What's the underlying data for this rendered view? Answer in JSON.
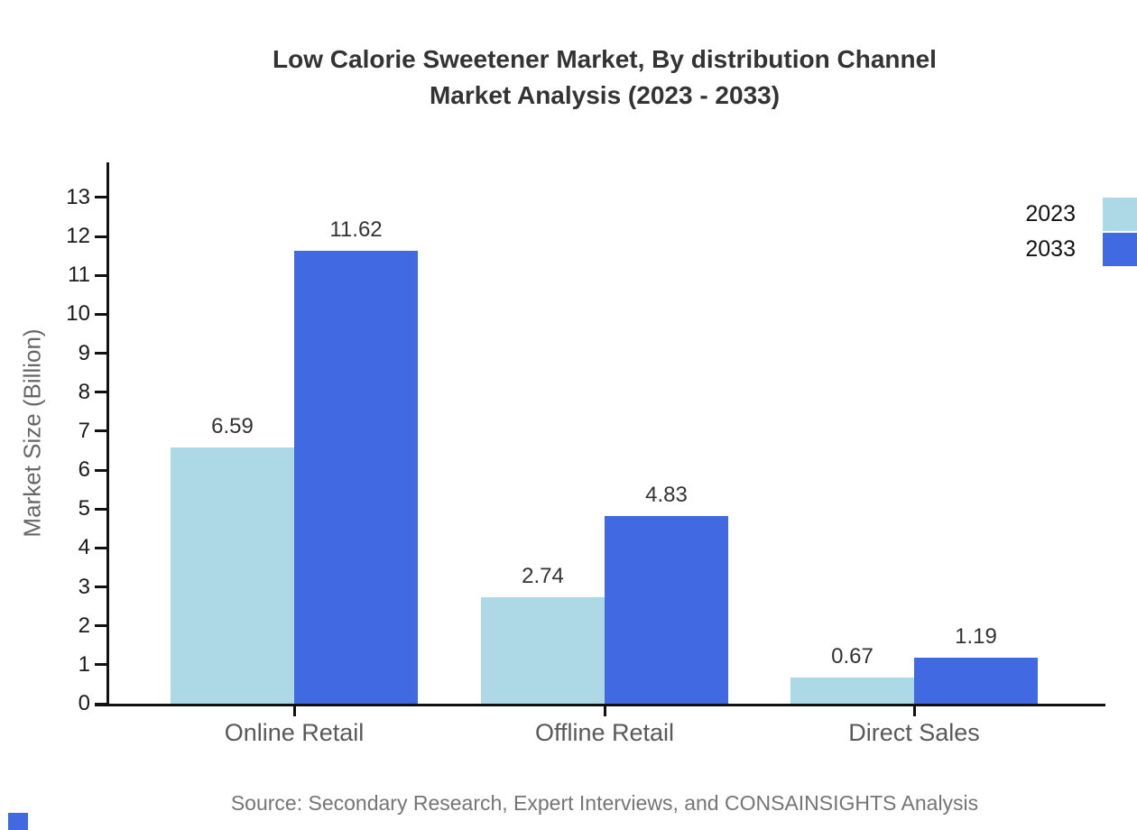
{
  "page": {
    "title_line1": "Low Calorie Sweetener Market, By distribution Channel",
    "title_line2": "Market Analysis (2023 - 2033)",
    "source_note": "Source: Secondary Research, Expert Interviews, and CONSAINSIGHTS Analysis"
  },
  "chart_data": {
    "type": "bar",
    "title": "Low Calorie Sweetener Market, By distribution Channel Market Analysis (2023 - 2033)",
    "categories": [
      "Online Retail",
      "Offline Retail",
      "Direct Sales"
    ],
    "series": [
      {
        "name": "2023",
        "color": "#ADD8E6",
        "values": [
          6.59,
          2.74,
          0.67
        ]
      },
      {
        "name": "2033",
        "color": "#4169E1",
        "values": [
          11.62,
          4.83,
          1.19
        ]
      }
    ],
    "xlabel": "",
    "ylabel": "Market Size (Billion)",
    "ylim": [
      0,
      13.9
    ],
    "yticks": [
      0,
      1,
      2,
      3,
      4,
      5,
      6,
      7,
      8,
      9,
      10,
      11,
      12,
      13
    ],
    "grid": false,
    "legend_position": "top-right",
    "value_labels": true,
    "accent_color": "#4169E1"
  }
}
